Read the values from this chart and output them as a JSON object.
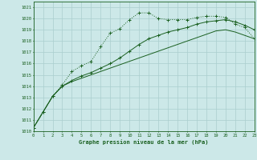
{
  "title": "Graphe pression niveau de la mer (hPa)",
  "background_color": "#cce8e8",
  "grid_color": "#aacece",
  "line_color": "#1a6020",
  "xlim": [
    0,
    23
  ],
  "ylim": [
    1010,
    1021.5
  ],
  "xticks": [
    0,
    1,
    2,
    3,
    4,
    5,
    6,
    7,
    8,
    9,
    10,
    11,
    12,
    13,
    14,
    15,
    16,
    17,
    18,
    19,
    20,
    21,
    22,
    23
  ],
  "yticks": [
    1010,
    1011,
    1012,
    1013,
    1014,
    1015,
    1016,
    1017,
    1018,
    1019,
    1020,
    1021
  ],
  "series1_x": [
    0,
    1,
    2,
    3,
    4,
    5,
    6,
    7,
    8,
    9,
    10,
    11,
    12,
    13,
    14,
    15,
    16,
    17,
    18,
    19,
    20,
    21,
    22,
    23
  ],
  "series1_y": [
    1010.3,
    1011.7,
    1013.1,
    1014.1,
    1015.3,
    1015.8,
    1016.2,
    1017.5,
    1018.7,
    1019.1,
    1019.9,
    1020.5,
    1020.5,
    1020.0,
    1019.9,
    1019.9,
    1019.9,
    1020.1,
    1020.2,
    1020.2,
    1020.1,
    1019.5,
    1019.2,
    1018.2
  ],
  "series2_x": [
    0,
    1,
    2,
    3,
    4,
    5,
    6,
    7,
    8,
    9,
    10,
    11,
    12,
    13,
    14,
    15,
    16,
    17,
    18,
    19,
    20,
    21,
    22,
    23
  ],
  "series2_y": [
    1010.3,
    1011.7,
    1013.1,
    1014.0,
    1014.4,
    1014.7,
    1015.0,
    1015.3,
    1015.6,
    1015.9,
    1016.2,
    1016.5,
    1016.8,
    1017.1,
    1017.4,
    1017.7,
    1018.0,
    1018.3,
    1018.6,
    1018.9,
    1019.0,
    1018.8,
    1018.5,
    1018.2
  ],
  "series3_x": [
    0,
    1,
    2,
    3,
    4,
    5,
    6,
    7,
    8,
    9,
    10,
    11,
    12,
    13,
    14,
    15,
    16,
    17,
    18,
    19,
    20,
    21,
    22,
    23
  ],
  "series3_y": [
    1010.3,
    1011.7,
    1013.1,
    1014.0,
    1014.5,
    1014.9,
    1015.2,
    1015.6,
    1016.0,
    1016.5,
    1017.1,
    1017.7,
    1018.2,
    1018.5,
    1018.8,
    1019.0,
    1019.2,
    1019.5,
    1019.7,
    1019.8,
    1019.9,
    1019.7,
    1019.4,
    1019.0
  ]
}
